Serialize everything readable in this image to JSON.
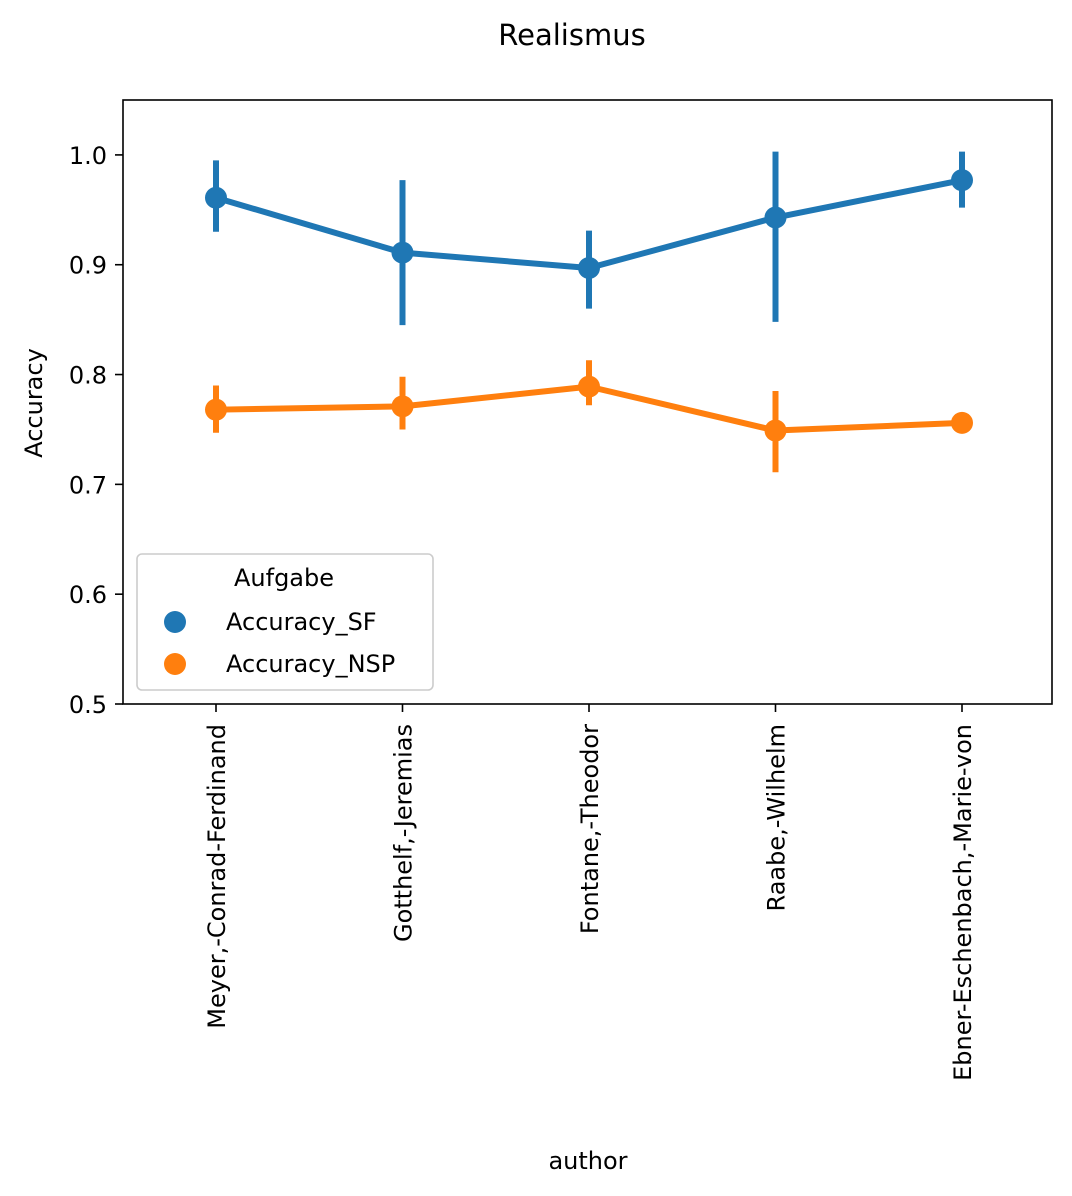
{
  "chart_data": {
    "type": "line",
    "title": "Realismus",
    "xlabel": "author",
    "ylabel": "Accuracy",
    "ylim": [
      0.5,
      1.05
    ],
    "yticks": [
      "0.5",
      "0.6",
      "0.7",
      "0.8",
      "0.9",
      "1.0"
    ],
    "categories": [
      "Meyer,-Conrad-Ferdinand",
      "Gotthelf,-Jeremias",
      "Fontane,-Theodor",
      "Raabe,-Wilhelm",
      "Ebner-Eschenbach,-Marie-von"
    ],
    "legend": {
      "title": "Aufgabe",
      "placement": "lower-left"
    },
    "grid": false,
    "series": [
      {
        "name": "Accuracy_SF",
        "color": "#1f77b4",
        "values": [
          0.961,
          0.911,
          0.897,
          0.943,
          0.977
        ],
        "ci_low": [
          0.93,
          0.845,
          0.86,
          0.848,
          0.952
        ],
        "ci_high": [
          0.995,
          0.977,
          0.931,
          1.003,
          1.003
        ]
      },
      {
        "name": "Accuracy_NSP",
        "color": "#ff7f0e",
        "values": [
          0.768,
          0.771,
          0.789,
          0.749,
          0.756
        ],
        "ci_low": [
          0.747,
          0.75,
          0.772,
          0.711,
          0.756
        ],
        "ci_high": [
          0.79,
          0.798,
          0.813,
          0.785,
          0.756
        ]
      }
    ]
  }
}
